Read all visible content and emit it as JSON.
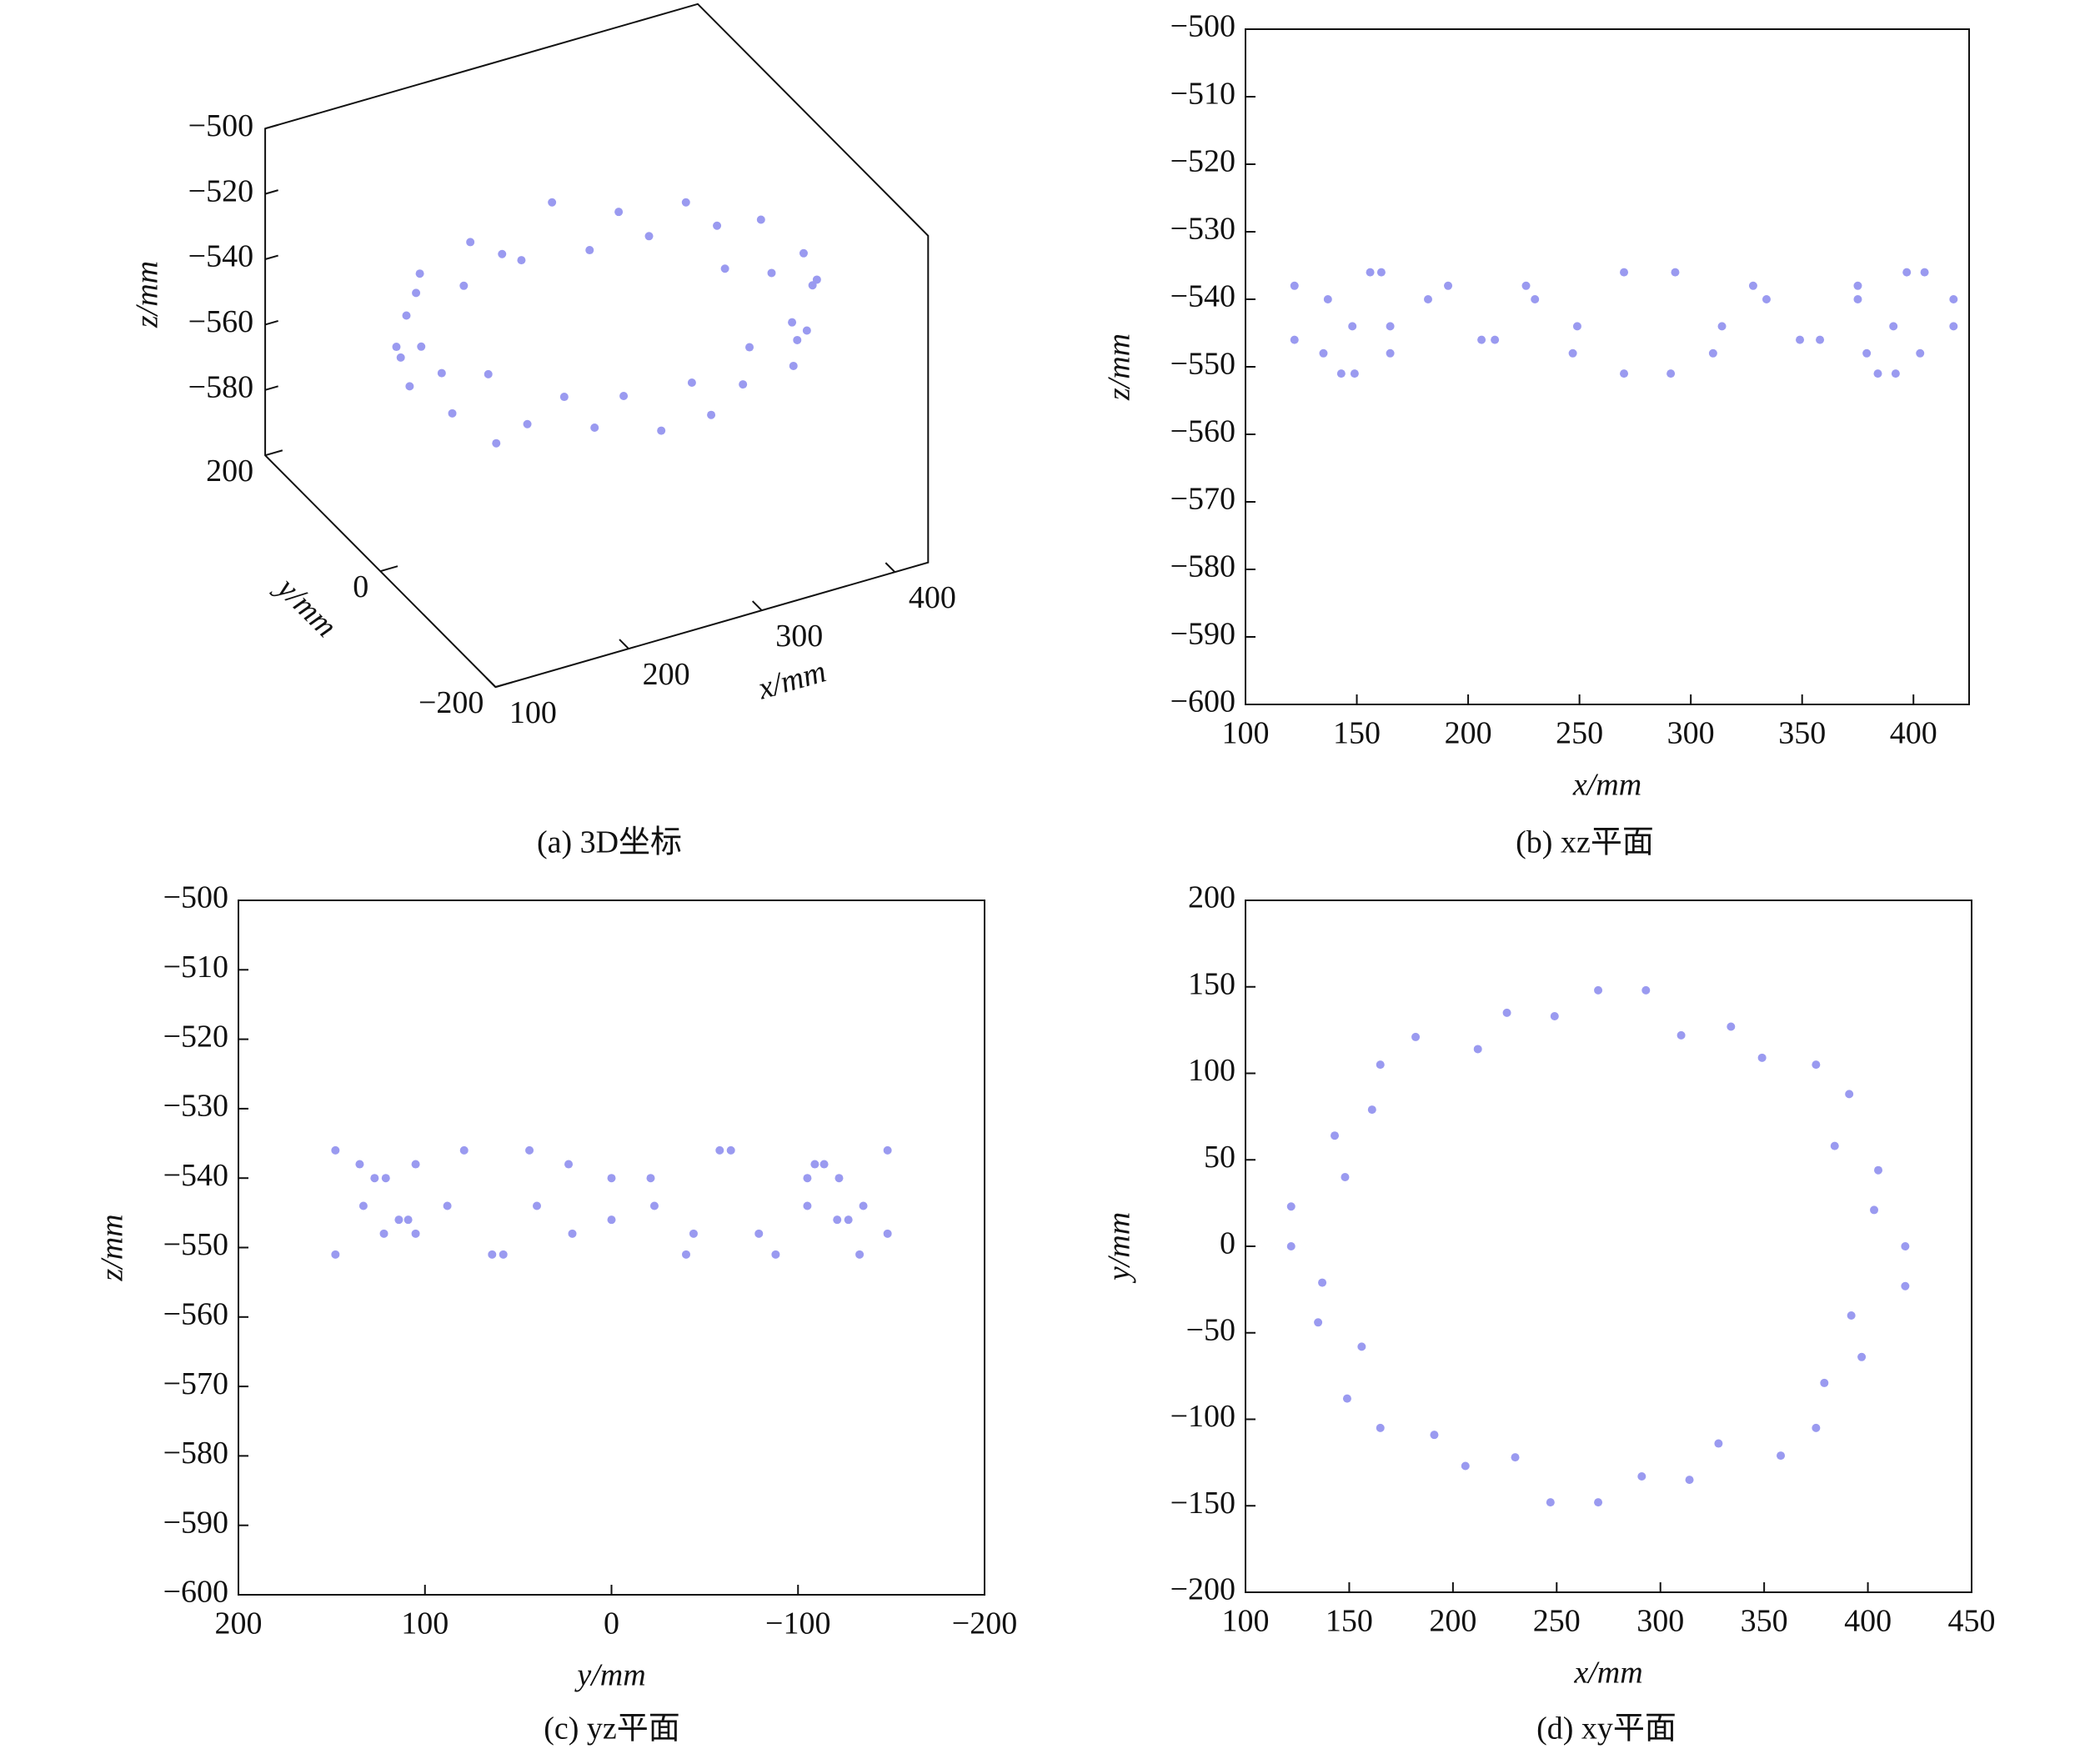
{
  "chart_data": [
    {
      "type": "scatter3d",
      "caption": "(a) 3D坐标",
      "xlabel": "x/mm",
      "ylabel": "y/mm",
      "zlabel": "z/mm",
      "color": "#9a9af0",
      "xlim": [
        100,
        425
      ],
      "ylim": [
        -200,
        200
      ],
      "zlim": [
        -600,
        -500
      ],
      "xticks": [
        100,
        200,
        300,
        400
      ],
      "yticks": [
        {
          "value": -200,
          "label": "−200"
        },
        0,
        200
      ],
      "zticks": [
        {
          "value": -580,
          "label": "−580"
        },
        {
          "value": -560,
          "label": "−560"
        },
        {
          "value": -540,
          "label": "−540"
        },
        {
          "value": -520,
          "label": "−520"
        },
        {
          "value": -500,
          "label": "−500"
        }
      ],
      "x": [
        418,
        403,
        405,
        384,
        391,
        375,
        349,
        334,
        310,
        293,
        270,
        249,
        226,
        212,
        182,
        165,
        161,
        143,
        148,
        122,
        122,
        137,
        135,
        156,
        149,
        165,
        191,
        206,
        230,
        247,
        270,
        291,
        314,
        328,
        358,
        375,
        379,
        397,
        392,
        418
      ],
      "y": [
        0,
        21,
        44,
        58,
        88,
        105,
        109,
        127,
        122,
        148,
        148,
        133,
        135,
        114,
        121,
        105,
        79,
        64,
        40,
        23,
        0,
        -21,
        -44,
        -58,
        -88,
        -105,
        -109,
        -127,
        -122,
        -148,
        -148,
        -133,
        -135,
        -114,
        -121,
        -105,
        -79,
        -64,
        -40,
        -23
      ],
      "z": [
        -540,
        -548,
        -536,
        -551,
        -544,
        -538,
        -546,
        -540,
        -548,
        -536,
        -551,
        -544,
        -538,
        -546,
        -540,
        -548,
        -536,
        -551,
        -544,
        -538,
        -546,
        -540,
        -548,
        -536,
        -551,
        -544,
        -538,
        -546,
        -540,
        -548,
        -536,
        -551,
        -544,
        -538,
        -546,
        -540,
        -548,
        -536,
        -551,
        -544
      ]
    },
    {
      "type": "scatter",
      "caption": "(b) xz平面",
      "xlabel": "x/mm",
      "ylabel": "z/mm",
      "color": "#9a9af0",
      "xlim": [
        100,
        425
      ],
      "ylim": [
        -600,
        -500
      ],
      "xticks": [
        100,
        150,
        200,
        250,
        300,
        350,
        400
      ],
      "yticks": [
        {
          "value": -600,
          "label": "−600"
        },
        {
          "value": -590,
          "label": "−590"
        },
        {
          "value": -580,
          "label": "−580"
        },
        {
          "value": -570,
          "label": "−570"
        },
        {
          "value": -560,
          "label": "−560"
        },
        {
          "value": -550,
          "label": "−550"
        },
        {
          "value": -540,
          "label": "−540"
        },
        {
          "value": -530,
          "label": "−530"
        },
        {
          "value": -520,
          "label": "−520"
        },
        {
          "value": -510,
          "label": "−510"
        },
        {
          "value": -500,
          "label": "−500"
        }
      ],
      "x": [
        418,
        403,
        405,
        384,
        391,
        375,
        349,
        334,
        310,
        293,
        270,
        249,
        226,
        212,
        182,
        165,
        161,
        143,
        148,
        122,
        122,
        137,
        135,
        156,
        149,
        165,
        191,
        206,
        230,
        247,
        270,
        291,
        314,
        328,
        358,
        375,
        379,
        397,
        392,
        418
      ],
      "y": [
        -540,
        -548,
        -536,
        -551,
        -544,
        -538,
        -546,
        -540,
        -548,
        -536,
        -551,
        -544,
        -538,
        -546,
        -540,
        -548,
        -536,
        -551,
        -544,
        -538,
        -546,
        -540,
        -548,
        -536,
        -551,
        -544,
        -538,
        -546,
        -540,
        -548,
        -536,
        -551,
        -544,
        -538,
        -546,
        -540,
        -548,
        -536,
        -551,
        -544
      ]
    },
    {
      "type": "scatter",
      "caption": "(c) yz平面",
      "xlabel": "y/mm",
      "ylabel": "z/mm",
      "color": "#9a9af0",
      "xlim": [
        200,
        -200
      ],
      "ylim": [
        -600,
        -500
      ],
      "xticks": [
        200,
        100,
        0,
        {
          "value": -100,
          "label": "−100"
        },
        {
          "value": -200,
          "label": "−200"
        }
      ],
      "yticks": [
        {
          "value": -600,
          "label": "−600"
        },
        {
          "value": -590,
          "label": "−590"
        },
        {
          "value": -580,
          "label": "−580"
        },
        {
          "value": -570,
          "label": "−570"
        },
        {
          "value": -560,
          "label": "−560"
        },
        {
          "value": -550,
          "label": "−550"
        },
        {
          "value": -540,
          "label": "−540"
        },
        {
          "value": -530,
          "label": "−530"
        },
        {
          "value": -520,
          "label": "−520"
        },
        {
          "value": -510,
          "label": "−510"
        },
        {
          "value": -500,
          "label": "−500"
        }
      ],
      "x": [
        0,
        21,
        44,
        58,
        88,
        105,
        109,
        127,
        122,
        148,
        148,
        133,
        135,
        114,
        121,
        105,
        79,
        64,
        40,
        23,
        0,
        -21,
        -44,
        -58,
        -88,
        -105,
        -109,
        -127,
        -122,
        -148,
        -148,
        -133,
        -135,
        -114,
        -121,
        -105,
        -79,
        -64,
        -40,
        -23
      ],
      "y": [
        -540,
        -548,
        -536,
        -551,
        -544,
        -538,
        -546,
        -540,
        -548,
        -536,
        -551,
        -544,
        -538,
        -546,
        -540,
        -548,
        -536,
        -551,
        -544,
        -538,
        -546,
        -540,
        -548,
        -536,
        -551,
        -544,
        -538,
        -546,
        -540,
        -548,
        -536,
        -551,
        -544,
        -538,
        -546,
        -540,
        -548,
        -536,
        -551,
        -544
      ]
    },
    {
      "type": "scatter",
      "caption": "(d) xy平面",
      "xlabel": "x/mm",
      "ylabel": "y/mm",
      "color": "#9a9af0",
      "xlim": [
        100,
        450
      ],
      "ylim": [
        -200,
        200
      ],
      "xticks": [
        100,
        150,
        200,
        250,
        300,
        350,
        400,
        450
      ],
      "yticks": [
        {
          "value": -200,
          "label": "−200"
        },
        {
          "value": -150,
          "label": "−150"
        },
        {
          "value": -100,
          "label": "−100"
        },
        {
          "value": -50,
          "label": "−50"
        },
        0,
        50,
        100,
        150,
        200
      ],
      "x": [
        418,
        403,
        405,
        384,
        391,
        375,
        349,
        334,
        310,
        293,
        270,
        249,
        226,
        212,
        182,
        165,
        161,
        143,
        148,
        122,
        122,
        137,
        135,
        156,
        149,
        165,
        191,
        206,
        230,
        247,
        270,
        291,
        314,
        328,
        358,
        375,
        379,
        397,
        392,
        418
      ],
      "y": [
        0,
        21,
        44,
        58,
        88,
        105,
        109,
        127,
        122,
        148,
        148,
        133,
        135,
        114,
        121,
        105,
        79,
        64,
        40,
        23,
        0,
        -21,
        -44,
        -58,
        -88,
        -105,
        -109,
        -127,
        -122,
        -148,
        -148,
        -133,
        -135,
        -114,
        -121,
        -105,
        -79,
        -64,
        -40,
        -23
      ]
    }
  ]
}
